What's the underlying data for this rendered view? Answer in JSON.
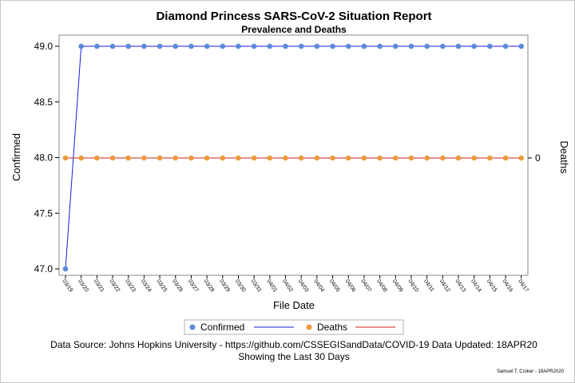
{
  "chart_data": {
    "type": "line",
    "title": "Diamond Princess SARS-CoV-2 Situation Report",
    "subtitle": "Prevalence and Deaths",
    "xlabel": "File Date",
    "ylabel_left": "Confirmed",
    "ylabel_right": "Deaths",
    "x": [
      "03/19",
      "03/20",
      "03/21",
      "03/22",
      "03/23",
      "03/24",
      "03/25",
      "03/26",
      "03/27",
      "03/28",
      "03/29",
      "03/30",
      "03/31",
      "04/01",
      "04/02",
      "04/03",
      "04/04",
      "04/05",
      "04/06",
      "04/07",
      "04/08",
      "04/09",
      "04/10",
      "04/11",
      "04/12",
      "04/13",
      "04/14",
      "04/15",
      "04/16",
      "04/17"
    ],
    "ylim_left": [
      47.0,
      49.0
    ],
    "yticks_left": [
      "47.0",
      "47.5",
      "48.0",
      "48.5",
      "49.0"
    ],
    "ytick_values_left": [
      47.0,
      47.5,
      48.0,
      48.5,
      49.0
    ],
    "yticks_right": [
      "0"
    ],
    "ytick_values_right": [
      0
    ],
    "ylim_right": [
      -1,
      1
    ],
    "grid": false,
    "legend_position": "bottom",
    "series": [
      {
        "name": "Confirmed",
        "axis": "left",
        "marker_color": "#5b8bd9",
        "line_color": "#1a1adb",
        "values": [
          47,
          49,
          49,
          49,
          49,
          49,
          49,
          49,
          49,
          49,
          49,
          49,
          49,
          49,
          49,
          49,
          49,
          49,
          49,
          49,
          49,
          49,
          49,
          49,
          49,
          49,
          49,
          49,
          49,
          49
        ]
      },
      {
        "name": "Deaths",
        "axis": "right",
        "marker_color": "#ee9a3e",
        "line_color": "#cc2020",
        "values": [
          0,
          0,
          0,
          0,
          0,
          0,
          0,
          0,
          0,
          0,
          0,
          0,
          0,
          0,
          0,
          0,
          0,
          0,
          0,
          0,
          0,
          0,
          0,
          0,
          0,
          0,
          0,
          0,
          0,
          0
        ]
      }
    ]
  },
  "footer": {
    "source_line": "Data Source: Johns Hopkins University - https://github.com/CSSEGISandData/COVID-19 Data Updated: 18APR20",
    "period_line": "Showing the Last 30 Days",
    "signature": "Samuel T. Croker - 18APR2020"
  }
}
